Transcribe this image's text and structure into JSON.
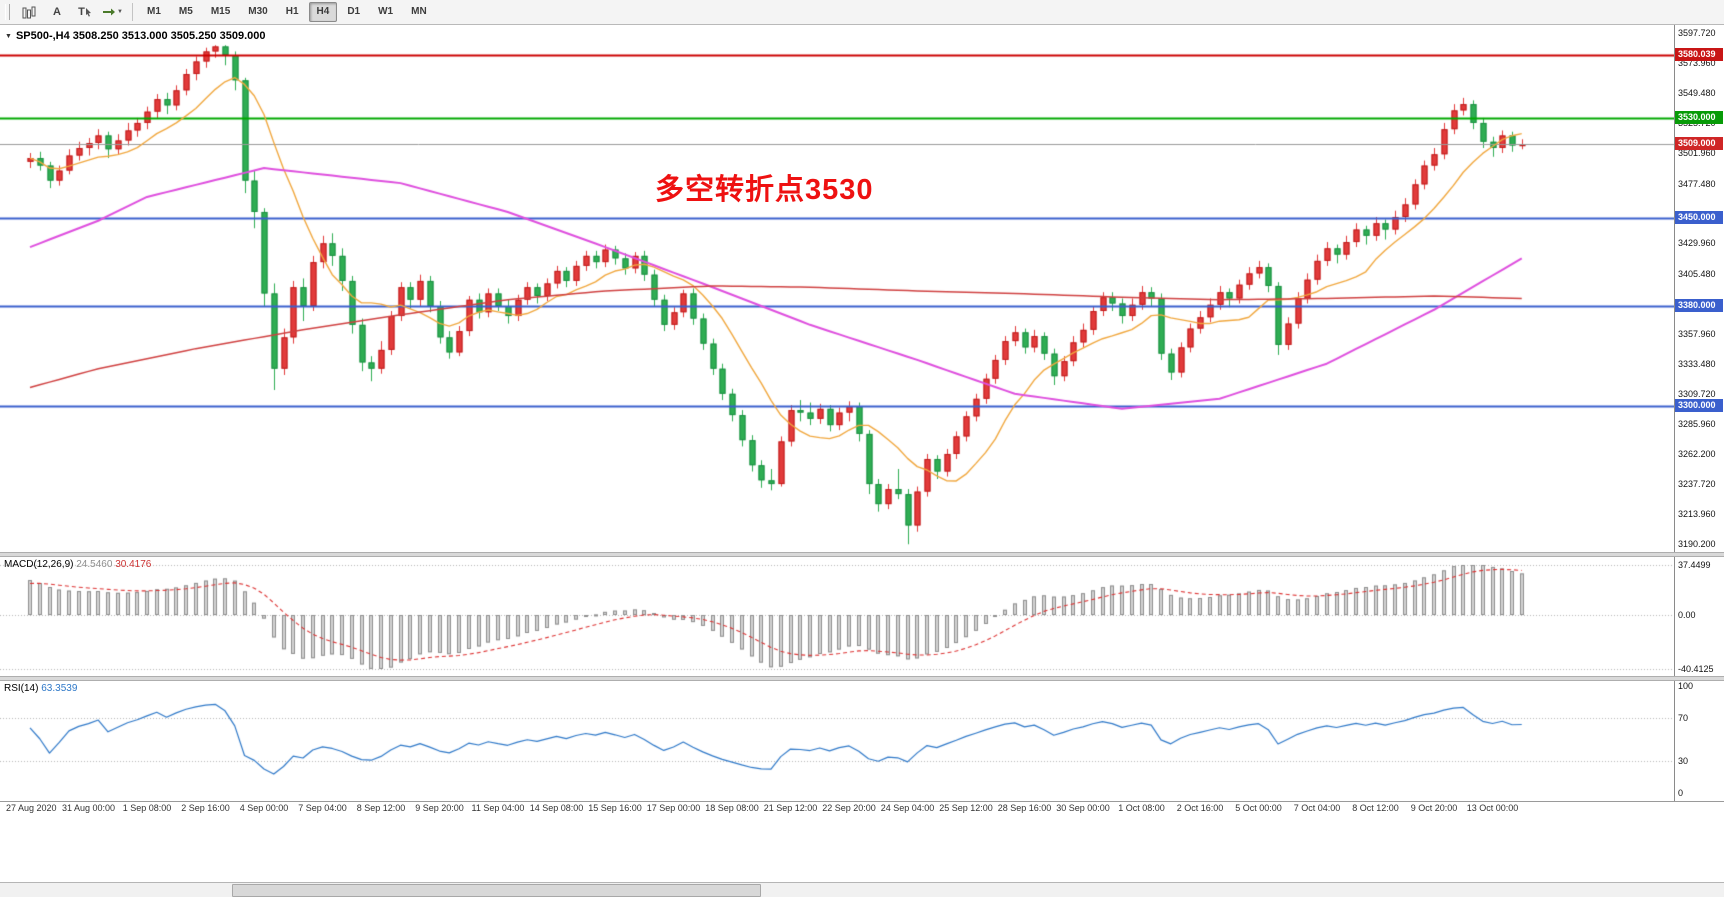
{
  "toolbar": {
    "tools": [
      {
        "name": "chart-bars-icon",
        "label": ""
      },
      {
        "name": "annotation-tool",
        "label": "A"
      },
      {
        "name": "text-tool",
        "label": "T"
      },
      {
        "name": "timeframe-switch-icon",
        "label": ""
      }
    ],
    "timeframes": [
      "M1",
      "M5",
      "M15",
      "M30",
      "H1",
      "H4",
      "D1",
      "W1",
      "MN"
    ],
    "selected_timeframe": "H4"
  },
  "chart_header": {
    "symbol_ohlc": "SP500-,H4  3508.250 3513.000 3505.250 3509.000"
  },
  "annotation": {
    "text": "多空转折点3530",
    "color": "#ee1111"
  },
  "chart_data": {
    "type": "candlestick",
    "symbol": "SP500-",
    "timeframe": "H4",
    "up_color": "#e23b3b",
    "down_color": "#2fae53",
    "up_border": "#bf1d1d",
    "down_border": "#1d8f44",
    "price_axis": {
      "max": 3597.72,
      "min": 3190.2,
      "ticks": [
        "3597.720",
        "3573.960",
        "3549.480",
        "3525.720",
        "3501.960",
        "3477.480",
        "3429.960",
        "3405.480",
        "3357.960",
        "3333.480",
        "3309.720",
        "3285.960",
        "3262.200",
        "3237.720",
        "3213.960",
        "3190.200"
      ]
    },
    "level_badges": [
      {
        "label": "3580.039",
        "value": 3580.039,
        "color": "#c81515"
      },
      {
        "label": "3530.000",
        "value": 3530.0,
        "color": "#079b07"
      },
      {
        "label": "3509.000",
        "value": 3509.0,
        "color": "#cf2626"
      },
      {
        "label": "3450.000",
        "value": 3450.0,
        "color": "#3a5fcd"
      },
      {
        "label": "3380.000",
        "value": 3380.0,
        "color": "#3a5fcd"
      },
      {
        "label": "3300.000",
        "value": 3300.0,
        "color": "#3a5fcd"
      }
    ],
    "hlines": [
      {
        "value": 3580.039,
        "color": "#cc0000",
        "width": 2
      },
      {
        "value": 3530.0,
        "color": "#00a800",
        "width": 2
      },
      {
        "value": 3509.0,
        "color": "#9a9a9a",
        "width": 1
      },
      {
        "value": 3450.0,
        "color": "#3a5fcd",
        "width": 2
      },
      {
        "value": 3380.0,
        "color": "#3a5fcd",
        "width": 2
      },
      {
        "value": 3300.0,
        "color": "#3a5fcd",
        "width": 2
      }
    ],
    "candles": [
      [
        3495,
        3502,
        3490,
        3498
      ],
      [
        3498,
        3503,
        3488,
        3492
      ],
      [
        3492,
        3495,
        3474,
        3480
      ],
      [
        3480,
        3492,
        3476,
        3488
      ],
      [
        3488,
        3505,
        3485,
        3500
      ],
      [
        3500,
        3511,
        3496,
        3506
      ],
      [
        3506,
        3514,
        3500,
        3510
      ],
      [
        3510,
        3521,
        3505,
        3516
      ],
      [
        3516,
        3519,
        3498,
        3505
      ],
      [
        3505,
        3517,
        3501,
        3512
      ],
      [
        3512,
        3526,
        3508,
        3520
      ],
      [
        3520,
        3530,
        3515,
        3526
      ],
      [
        3526,
        3539,
        3521,
        3535
      ],
      [
        3535,
        3549,
        3530,
        3545
      ],
      [
        3545,
        3550,
        3533,
        3540
      ],
      [
        3540,
        3556,
        3536,
        3552
      ],
      [
        3552,
        3569,
        3548,
        3565
      ],
      [
        3565,
        3579,
        3560,
        3575
      ],
      [
        3575,
        3586,
        3570,
        3583
      ],
      [
        3583,
        3588,
        3578,
        3587
      ],
      [
        3587,
        3588,
        3572,
        3580
      ],
      [
        3580,
        3583,
        3552,
        3560
      ],
      [
        3560,
        3562,
        3470,
        3480
      ],
      [
        3480,
        3488,
        3442,
        3455
      ],
      [
        3455,
        3458,
        3380,
        3390
      ],
      [
        3390,
        3398,
        3313,
        3330
      ],
      [
        3330,
        3362,
        3325,
        3355
      ],
      [
        3355,
        3400,
        3350,
        3395
      ],
      [
        3395,
        3402,
        3368,
        3380
      ],
      [
        3380,
        3420,
        3376,
        3415
      ],
      [
        3415,
        3436,
        3410,
        3430
      ],
      [
        3430,
        3438,
        3412,
        3420
      ],
      [
        3420,
        3426,
        3392,
        3400
      ],
      [
        3400,
        3404,
        3358,
        3365
      ],
      [
        3365,
        3370,
        3328,
        3335
      ],
      [
        3335,
        3340,
        3320,
        3330
      ],
      [
        3330,
        3352,
        3326,
        3345
      ],
      [
        3345,
        3376,
        3341,
        3372
      ],
      [
        3372,
        3399,
        3368,
        3395
      ],
      [
        3395,
        3399,
        3378,
        3385
      ],
      [
        3385,
        3405,
        3380,
        3400
      ],
      [
        3400,
        3404,
        3375,
        3380
      ],
      [
        3380,
        3384,
        3350,
        3355
      ],
      [
        3355,
        3360,
        3338,
        3343
      ],
      [
        3343,
        3364,
        3340,
        3360
      ],
      [
        3360,
        3388,
        3356,
        3385
      ],
      [
        3385,
        3390,
        3370,
        3375
      ],
      [
        3375,
        3394,
        3371,
        3390
      ],
      [
        3390,
        3394,
        3376,
        3380
      ],
      [
        3380,
        3385,
        3366,
        3372
      ],
      [
        3372,
        3389,
        3368,
        3385
      ],
      [
        3385,
        3399,
        3381,
        3395
      ],
      [
        3395,
        3398,
        3382,
        3388
      ],
      [
        3388,
        3402,
        3384,
        3398
      ],
      [
        3398,
        3412,
        3394,
        3408
      ],
      [
        3408,
        3411,
        3395,
        3400
      ],
      [
        3400,
        3416,
        3396,
        3412
      ],
      [
        3412,
        3424,
        3408,
        3420
      ],
      [
        3420,
        3424,
        3410,
        3415
      ],
      [
        3415,
        3429,
        3411,
        3425
      ],
      [
        3425,
        3428,
        3413,
        3418
      ],
      [
        3418,
        3422,
        3405,
        3410
      ],
      [
        3410,
        3423,
        3406,
        3420
      ],
      [
        3420,
        3424,
        3400,
        3405
      ],
      [
        3405,
        3409,
        3380,
        3385
      ],
      [
        3385,
        3389,
        3360,
        3365
      ],
      [
        3365,
        3379,
        3361,
        3375
      ],
      [
        3375,
        3393,
        3371,
        3390
      ],
      [
        3390,
        3394,
        3365,
        3370
      ],
      [
        3370,
        3374,
        3345,
        3350
      ],
      [
        3350,
        3354,
        3325,
        3330
      ],
      [
        3330,
        3334,
        3305,
        3310
      ],
      [
        3310,
        3314,
        3288,
        3293
      ],
      [
        3293,
        3297,
        3268,
        3273
      ],
      [
        3273,
        3277,
        3248,
        3253
      ],
      [
        3253,
        3257,
        3235,
        3241
      ],
      [
        3241,
        3250,
        3233,
        3238
      ],
      [
        3238,
        3276,
        3236,
        3272
      ],
      [
        3272,
        3301,
        3268,
        3297
      ],
      [
        3297,
        3305,
        3288,
        3295
      ],
      [
        3295,
        3303,
        3285,
        3290
      ],
      [
        3290,
        3302,
        3286,
        3298
      ],
      [
        3298,
        3301,
        3280,
        3285
      ],
      [
        3285,
        3299,
        3281,
        3295
      ],
      [
        3295,
        3304,
        3288,
        3300
      ],
      [
        3300,
        3303,
        3272,
        3278
      ],
      [
        3278,
        3281,
        3230,
        3238
      ],
      [
        3238,
        3242,
        3216,
        3222
      ],
      [
        3222,
        3238,
        3218,
        3234
      ],
      [
        3234,
        3250,
        3226,
        3230
      ],
      [
        3230,
        3234,
        3190,
        3205
      ],
      [
        3205,
        3236,
        3200,
        3232
      ],
      [
        3232,
        3262,
        3228,
        3258
      ],
      [
        3258,
        3261,
        3242,
        3248
      ],
      [
        3248,
        3266,
        3244,
        3262
      ],
      [
        3262,
        3280,
        3258,
        3276
      ],
      [
        3276,
        3296,
        3272,
        3292
      ],
      [
        3292,
        3310,
        3288,
        3306
      ],
      [
        3306,
        3326,
        3302,
        3322
      ],
      [
        3322,
        3341,
        3318,
        3337
      ],
      [
        3337,
        3356,
        3333,
        3352
      ],
      [
        3352,
        3364,
        3348,
        3359
      ],
      [
        3359,
        3362,
        3342,
        3347
      ],
      [
        3347,
        3361,
        3343,
        3356
      ],
      [
        3356,
        3359,
        3337,
        3342
      ],
      [
        3342,
        3346,
        3317,
        3324
      ],
      [
        3324,
        3340,
        3320,
        3336
      ],
      [
        3336,
        3356,
        3332,
        3351
      ],
      [
        3351,
        3366,
        3347,
        3361
      ],
      [
        3361,
        3380,
        3357,
        3376
      ],
      [
        3376,
        3391,
        3372,
        3387
      ],
      [
        3387,
        3391,
        3376,
        3382
      ],
      [
        3382,
        3386,
        3366,
        3372
      ],
      [
        3372,
        3386,
        3368,
        3381
      ],
      [
        3381,
        3396,
        3377,
        3391
      ],
      [
        3391,
        3395,
        3380,
        3386
      ],
      [
        3386,
        3390,
        3337,
        3342
      ],
      [
        3342,
        3346,
        3321,
        3327
      ],
      [
        3327,
        3351,
        3323,
        3347
      ],
      [
        3347,
        3366,
        3343,
        3362
      ],
      [
        3362,
        3376,
        3358,
        3371
      ],
      [
        3371,
        3386,
        3367,
        3381
      ],
      [
        3381,
        3396,
        3377,
        3391
      ],
      [
        3391,
        3394,
        3379,
        3386
      ],
      [
        3386,
        3401,
        3382,
        3397
      ],
      [
        3397,
        3411,
        3393,
        3406
      ],
      [
        3406,
        3416,
        3402,
        3411
      ],
      [
        3411,
        3414,
        3391,
        3396
      ],
      [
        3396,
        3399,
        3341,
        3349
      ],
      [
        3349,
        3371,
        3345,
        3366
      ],
      [
        3366,
        3391,
        3362,
        3386
      ],
      [
        3386,
        3406,
        3382,
        3401
      ],
      [
        3401,
        3421,
        3397,
        3416
      ],
      [
        3416,
        3431,
        3412,
        3426
      ],
      [
        3426,
        3429,
        3414,
        3421
      ],
      [
        3421,
        3436,
        3417,
        3431
      ],
      [
        3431,
        3446,
        3427,
        3441
      ],
      [
        3441,
        3444,
        3429,
        3436
      ],
      [
        3436,
        3451,
        3432,
        3446
      ],
      [
        3446,
        3449,
        3433,
        3441
      ],
      [
        3441,
        3456,
        3437,
        3451
      ],
      [
        3451,
        3466,
        3447,
        3461
      ],
      [
        3461,
        3481,
        3457,
        3477
      ],
      [
        3477,
        3496,
        3473,
        3492
      ],
      [
        3492,
        3506,
        3488,
        3501
      ],
      [
        3501,
        3526,
        3497,
        3521
      ],
      [
        3521,
        3541,
        3517,
        3536
      ],
      [
        3536,
        3546,
        3532,
        3541
      ],
      [
        3541,
        3544,
        3521,
        3526
      ],
      [
        3526,
        3530,
        3506,
        3511
      ],
      [
        3511,
        3515,
        3499,
        3506
      ],
      [
        3506,
        3520,
        3502,
        3516
      ],
      [
        3516,
        3519,
        3503,
        3508
      ],
      [
        3508,
        3513,
        3505,
        3509
      ]
    ],
    "moving_averages": {
      "orange": {
        "color": "#f0a73e",
        "period": 10
      },
      "magenta": {
        "color": "#de4fde",
        "anchors": [
          [
            0,
            3427
          ],
          [
            7,
            3448
          ],
          [
            12,
            3467
          ],
          [
            24,
            3490
          ],
          [
            38,
            3478
          ],
          [
            49,
            3455
          ],
          [
            59,
            3427
          ],
          [
            70,
            3395
          ],
          [
            75,
            3380
          ],
          [
            80,
            3365
          ],
          [
            91,
            3337
          ],
          [
            101,
            3310
          ],
          [
            112,
            3298
          ],
          [
            122,
            3306
          ],
          [
            133,
            3334
          ],
          [
            144,
            3377
          ],
          [
            153,
            3418
          ]
        ]
      },
      "red": {
        "color": "#cf4040",
        "anchors": [
          [
            0,
            3315
          ],
          [
            7,
            3330
          ],
          [
            17,
            3346
          ],
          [
            28,
            3361
          ],
          [
            38,
            3373
          ],
          [
            49,
            3385
          ],
          [
            59,
            3392
          ],
          [
            70,
            3396
          ],
          [
            80,
            3395
          ],
          [
            91,
            3392
          ],
          [
            101,
            3390
          ],
          [
            112,
            3387
          ],
          [
            122,
            3385
          ],
          [
            133,
            3386
          ],
          [
            144,
            3388
          ],
          [
            153,
            3386
          ]
        ]
      }
    },
    "dates": [
      "27 Aug 2020",
      "31 Aug 00:00",
      "1 Sep 08:00",
      "2 Sep 16:00",
      "4 Sep 00:00",
      "7 Sep 04:00",
      "8 Sep 12:00",
      "9 Sep 20:00",
      "11 Sep 04:00",
      "14 Sep 08:00",
      "15 Sep 16:00",
      "17 Sep 00:00",
      "18 Sep 08:00",
      "21 Sep 12:00",
      "22 Sep 20:00",
      "24 Sep 04:00",
      "25 Sep 12:00",
      "28 Sep 16:00",
      "30 Sep 00:00",
      "1 Oct 08:00",
      "2 Oct 16:00",
      "5 Oct 00:00",
      "7 Oct 04:00",
      "8 Oct 12:00",
      "9 Oct 20:00",
      "13 Oct 00:00"
    ],
    "macd": {
      "title": "MACD(12,26,9)",
      "value_main": "24.5460",
      "value_signal": "30.4176",
      "axis": {
        "max": 37.4499,
        "min": -40.4125,
        "labels": [
          "37.4499",
          "0.00",
          "-40.4125"
        ]
      },
      "histogram_color": "#d2d2d2",
      "histogram_border": "#8f8f8f",
      "signal_color": "#dd3333"
    },
    "rsi": {
      "title": "RSI(14)",
      "value": "63.3539",
      "axis_labels": [
        "100",
        "70",
        "30",
        "0"
      ],
      "axis_values": [
        100,
        70,
        30,
        0
      ],
      "levels": [
        70,
        30
      ],
      "color": "#2e78c8"
    }
  }
}
